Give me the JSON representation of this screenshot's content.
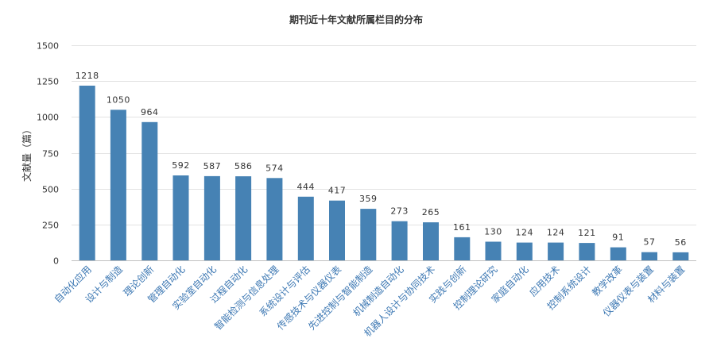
{
  "chart_data": {
    "type": "bar",
    "title": "期刊近十年文献所属栏目的分布",
    "xlabel": "",
    "ylabel": "文献量（篇）",
    "ylim": [
      0,
      1500
    ],
    "yticks": [
      0,
      250,
      500,
      750,
      1000,
      1250,
      1500
    ],
    "grid": true,
    "bar_color": "#4682b4",
    "categories": [
      "自动化应用",
      "设计与制造",
      "理论创新",
      "管理自动化",
      "实验室自动化",
      "过程自动化",
      "智能检测与信息处理",
      "系统设计与评估",
      "传感技术与仪器仪表",
      "先进控制与智能制造",
      "机械制造自动化",
      "机器人设计与协同技术",
      "实践与创新",
      "控制理论研究",
      "家庭自动化",
      "应用技术",
      "控制系统设计",
      "教学改革",
      "仪器仪表与装置",
      "材料与装置"
    ],
    "values": [
      1218,
      1050,
      964,
      592,
      587,
      586,
      574,
      444,
      417,
      359,
      273,
      265,
      161,
      130,
      124,
      124,
      121,
      91,
      57,
      56
    ]
  }
}
